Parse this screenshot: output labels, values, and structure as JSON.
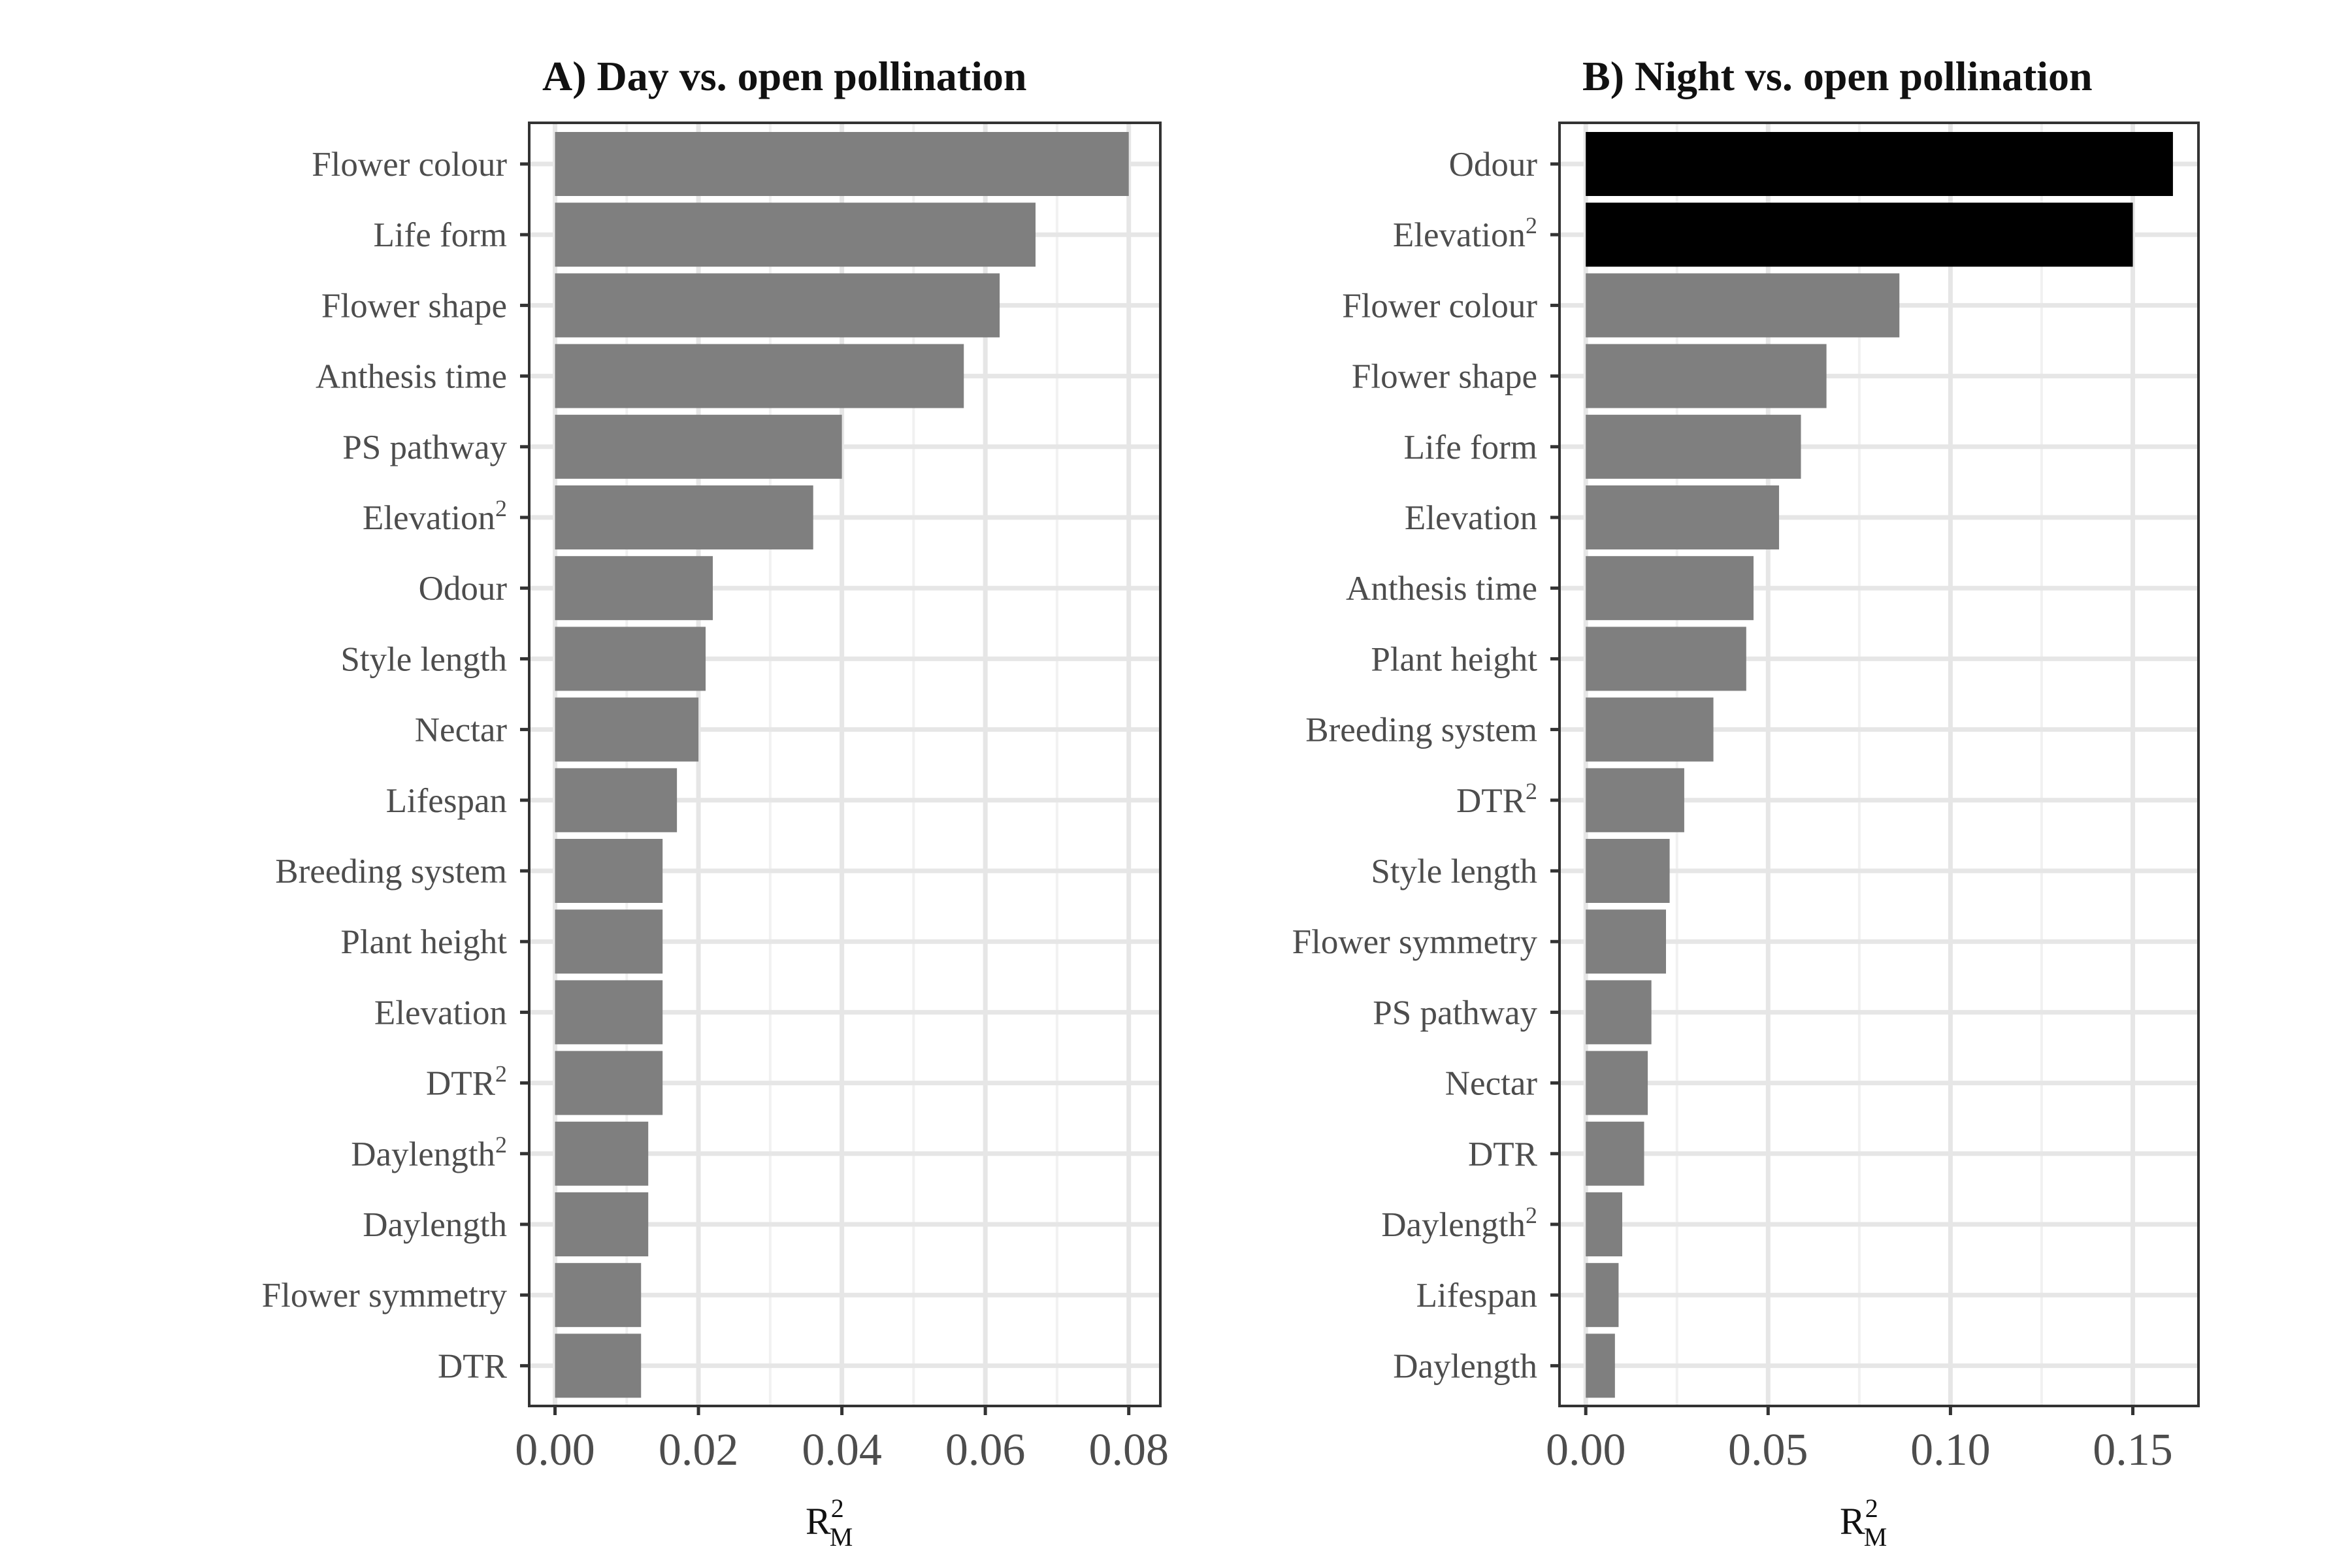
{
  "chart_data": [
    {
      "type": "bar",
      "orientation": "horizontal",
      "title": "A) Day vs. open pollination",
      "xlabel_base": "R",
      "xlabel_sup": "2",
      "xlabel_sub": "M",
      "xlim": [
        -0.0036,
        0.0844
      ],
      "xticks": [
        0.0,
        0.02,
        0.04,
        0.06,
        0.08
      ],
      "xtick_labels": [
        "0.00",
        "0.02",
        "0.04",
        "0.06",
        "0.08"
      ],
      "categories": [
        {
          "label": "Flower colour",
          "sup": "",
          "value": 0.08,
          "highlight": false
        },
        {
          "label": "Life form",
          "sup": "",
          "value": 0.067,
          "highlight": false
        },
        {
          "label": "Flower shape",
          "sup": "",
          "value": 0.062,
          "highlight": false
        },
        {
          "label": "Anthesis time",
          "sup": "",
          "value": 0.057,
          "highlight": false
        },
        {
          "label": "PS pathway",
          "sup": "",
          "value": 0.04,
          "highlight": false
        },
        {
          "label": "Elevation",
          "sup": "2",
          "value": 0.036,
          "highlight": false
        },
        {
          "label": "Odour",
          "sup": "",
          "value": 0.022,
          "highlight": false
        },
        {
          "label": "Style length",
          "sup": "",
          "value": 0.021,
          "highlight": false
        },
        {
          "label": "Nectar",
          "sup": "",
          "value": 0.02,
          "highlight": false
        },
        {
          "label": "Lifespan",
          "sup": "",
          "value": 0.017,
          "highlight": false
        },
        {
          "label": "Breeding system",
          "sup": "",
          "value": 0.015,
          "highlight": false
        },
        {
          "label": "Plant height",
          "sup": "",
          "value": 0.015,
          "highlight": false
        },
        {
          "label": "Elevation",
          "sup": "",
          "value": 0.015,
          "highlight": false
        },
        {
          "label": "DTR",
          "sup": "2",
          "value": 0.015,
          "highlight": false
        },
        {
          "label": "Daylength",
          "sup": "2",
          "value": 0.013,
          "highlight": false
        },
        {
          "label": "Daylength",
          "sup": "",
          "value": 0.013,
          "highlight": false
        },
        {
          "label": "Flower symmetry",
          "sup": "",
          "value": 0.012,
          "highlight": false
        },
        {
          "label": "DTR",
          "sup": "",
          "value": 0.012,
          "highlight": false
        }
      ],
      "grid": true
    },
    {
      "type": "bar",
      "orientation": "horizontal",
      "title": "B) Night vs. open pollination",
      "xlabel_base": "R",
      "xlabel_sup": "2",
      "xlabel_sub": "M",
      "xlim": [
        -0.0072,
        0.168
      ],
      "xticks": [
        0.0,
        0.05,
        0.1,
        0.15
      ],
      "xtick_labels": [
        "0.00",
        "0.05",
        "0.10",
        "0.15"
      ],
      "categories": [
        {
          "label": "Odour",
          "sup": "",
          "value": 0.161,
          "highlight": true
        },
        {
          "label": "Elevation",
          "sup": "2",
          "value": 0.15,
          "highlight": true
        },
        {
          "label": "Flower colour",
          "sup": "",
          "value": 0.086,
          "highlight": false
        },
        {
          "label": "Flower shape",
          "sup": "",
          "value": 0.066,
          "highlight": false
        },
        {
          "label": "Life form",
          "sup": "",
          "value": 0.059,
          "highlight": false
        },
        {
          "label": "Elevation",
          "sup": "",
          "value": 0.053,
          "highlight": false
        },
        {
          "label": "Anthesis time",
          "sup": "",
          "value": 0.046,
          "highlight": false
        },
        {
          "label": "Plant height",
          "sup": "",
          "value": 0.044,
          "highlight": false
        },
        {
          "label": "Breeding system",
          "sup": "",
          "value": 0.035,
          "highlight": false
        },
        {
          "label": "DTR",
          "sup": "2",
          "value": 0.027,
          "highlight": false
        },
        {
          "label": "Style length",
          "sup": "",
          "value": 0.023,
          "highlight": false
        },
        {
          "label": "Flower symmetry",
          "sup": "",
          "value": 0.022,
          "highlight": false
        },
        {
          "label": "PS pathway",
          "sup": "",
          "value": 0.018,
          "highlight": false
        },
        {
          "label": "Nectar",
          "sup": "",
          "value": 0.017,
          "highlight": false
        },
        {
          "label": "DTR",
          "sup": "",
          "value": 0.016,
          "highlight": false
        },
        {
          "label": "Daylength",
          "sup": "2",
          "value": 0.01,
          "highlight": false
        },
        {
          "label": "Lifespan",
          "sup": "",
          "value": 0.009,
          "highlight": false
        },
        {
          "label": "Daylength",
          "sup": "",
          "value": 0.008,
          "highlight": false
        }
      ],
      "grid": true
    }
  ],
  "colors": {
    "bar_default": "#7f7f7f",
    "bar_highlight": "#000000"
  }
}
